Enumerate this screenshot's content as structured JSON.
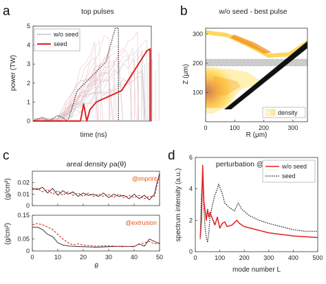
{
  "panel_labels": [
    "a",
    "b",
    "c",
    "d"
  ],
  "chart_data": [
    {
      "id": "a",
      "type": "line",
      "title": "top pulses",
      "xlabel": "time (ns)",
      "ylabel": "power (TW)",
      "ylim": [
        0,
        5
      ],
      "yticks": [
        "0",
        "1",
        "2",
        "3",
        "4",
        "5"
      ],
      "xticks": [],
      "legend": "top-left",
      "series": [
        {
          "name": "w/o seed",
          "style": "dotted",
          "color": "#555555",
          "x": [
            0,
            3,
            5,
            8,
            11,
            14,
            17,
            20,
            23,
            26,
            27,
            27
          ],
          "y": [
            0,
            0.2,
            0,
            0.3,
            0,
            1.6,
            2.1,
            2.6,
            3.1,
            4.9,
            4.9,
            0
          ]
        },
        {
          "name": "seed",
          "style": "solid",
          "color": "#e02020",
          "x": [
            0,
            8,
            15,
            16,
            17,
            18,
            20,
            28,
            36,
            37,
            37
          ],
          "y": [
            0,
            0,
            0,
            0.9,
            0,
            0.6,
            1.0,
            1.6,
            3.7,
            3.8,
            0
          ]
        }
      ],
      "background": "many faint grey and pink pulse traces (candidate pulse shapes)"
    },
    {
      "id": "b",
      "type": "heatmap",
      "title": "w/o seed - best pulse",
      "xlabel": "R (μm)",
      "ylabel": "Z (μm)",
      "xlim": [
        0,
        350
      ],
      "ylim": [
        0,
        320
      ],
      "xticks": [
        "0",
        "100",
        "200",
        "300"
      ],
      "yticks": [
        "100",
        "200",
        "300"
      ],
      "legend_label": "density",
      "colormap": [
        "#ffffff",
        "#fff3b0",
        "#ffd24a",
        "#f08a10",
        "#c82010",
        "#600000"
      ]
    },
    {
      "id": "c",
      "type": "line",
      "title": "areal density ρa(θ)",
      "xlabel": "θ",
      "ylabel": "(g/cm²)",
      "xticks": [
        "0",
        "10",
        "20",
        "30",
        "40",
        "50"
      ],
      "subplots": [
        {
          "annotation": "@imprint",
          "ylim": [
            0,
            0.03
          ],
          "yticks": [
            "0",
            "0.01",
            "0.02"
          ],
          "series": [
            {
              "style": "solid",
              "color": "#222222",
              "x": [
                0,
                2,
                4,
                6,
                8,
                10,
                12,
                14,
                16,
                18,
                20,
                22,
                24,
                26,
                28,
                30,
                32,
                34,
                36,
                38,
                40,
                42,
                44,
                46,
                48,
                49,
                50
              ],
              "y": [
                0.015,
                0.014,
                0.016,
                0.011,
                0.015,
                0.009,
                0.013,
                0.01,
                0.012,
                0.008,
                0.011,
                0.009,
                0.01,
                0.008,
                0.011,
                0.007,
                0.01,
                0.008,
                0.009,
                0.006,
                0.01,
                0.006,
                0.009,
                0.005,
                0.01,
                0.02,
                0.028
              ]
            },
            {
              "style": "dashed",
              "color": "#e02020",
              "x": [
                0,
                2,
                4,
                6,
                8,
                10,
                12,
                14,
                16,
                18,
                20,
                22,
                24,
                26,
                28,
                30,
                32,
                34,
                36,
                38,
                40,
                42,
                44,
                46,
                48,
                49,
                50
              ],
              "y": [
                0.014,
                0.015,
                0.012,
                0.014,
                0.01,
                0.013,
                0.009,
                0.012,
                0.009,
                0.011,
                0.008,
                0.011,
                0.008,
                0.01,
                0.008,
                0.01,
                0.007,
                0.01,
                0.007,
                0.009,
                0.007,
                0.009,
                0.006,
                0.008,
                0.008,
                0.018,
                0.026
              ]
            }
          ]
        },
        {
          "annotation": "@extrusion",
          "ylim": [
            0,
            0.15
          ],
          "yticks": [
            "0",
            "0.05",
            "0.15"
          ],
          "series": [
            {
              "style": "solid",
              "color": "#222222",
              "x": [
                0,
                2,
                4,
                6,
                8,
                10,
                12,
                15,
                20,
                25,
                30,
                35,
                40,
                42,
                44,
                46,
                48,
                50
              ],
              "y": [
                0.1,
                0.1,
                0.09,
                0.07,
                0.06,
                0.035,
                0.025,
                0.02,
                0.018,
                0.016,
                0.018,
                0.02,
                0.018,
                0.03,
                0.02,
                0.05,
                0.04,
                0.03
              ]
            },
            {
              "style": "dashed",
              "color": "#e02020",
              "x": [
                0,
                2,
                4,
                6,
                8,
                10,
                12,
                14,
                16,
                18,
                20,
                25,
                30,
                35,
                40,
                44,
                46,
                48,
                50
              ],
              "y": [
                0.11,
                0.115,
                0.11,
                0.1,
                0.09,
                0.07,
                0.05,
                0.035,
                0.025,
                0.03,
                0.025,
                0.02,
                0.022,
                0.018,
                0.02,
                0.035,
                0.04,
                0.03,
                0.035
              ]
            }
          ]
        }
      ]
    },
    {
      "id": "d",
      "type": "line",
      "title": "perturbation @extrusion",
      "xlabel": "mode number L",
      "ylabel": "spectrum intensity (a.u.)",
      "xlim": [
        0,
        500
      ],
      "ylim": [
        0,
        6
      ],
      "xticks": [
        "0",
        "100",
        "200",
        "300",
        "400",
        "500"
      ],
      "yticks": [
        "0",
        "2",
        "4",
        "6"
      ],
      "legend": "top-right",
      "series": [
        {
          "name": "w/o seed",
          "style": "solid",
          "color": "#e02020",
          "x": [
            20,
            25,
            30,
            35,
            40,
            45,
            50,
            55,
            60,
            70,
            80,
            90,
            100,
            110,
            120,
            130,
            150,
            170,
            180,
            200,
            250,
            300,
            350,
            400,
            450,
            500
          ],
          "y": [
            0.9,
            2.0,
            5.5,
            3.2,
            2.6,
            2.0,
            2.7,
            2.2,
            2.5,
            2.1,
            1.7,
            2.2,
            1.5,
            1.8,
            1.9,
            1.6,
            1.7,
            2.0,
            1.8,
            1.6,
            1.4,
            1.2,
            1.1,
            1.0,
            0.95,
            0.9
          ]
        },
        {
          "name": "seed",
          "style": "dotted",
          "color": "#111111",
          "x": [
            20,
            25,
            30,
            35,
            40,
            45,
            50,
            55,
            60,
            70,
            80,
            90,
            95,
            100,
            110,
            120,
            140,
            160,
            175,
            190,
            220,
            260,
            300,
            350,
            400,
            450,
            500
          ],
          "y": [
            0.8,
            3.7,
            5.0,
            2.7,
            1.5,
            0.9,
            0.6,
            1.2,
            2.2,
            3.0,
            3.6,
            4.0,
            4.3,
            4.1,
            3.7,
            3.1,
            2.8,
            2.6,
            3.1,
            2.7,
            2.3,
            2.0,
            1.8,
            1.6,
            1.4,
            1.3,
            1.3
          ]
        }
      ]
    }
  ]
}
